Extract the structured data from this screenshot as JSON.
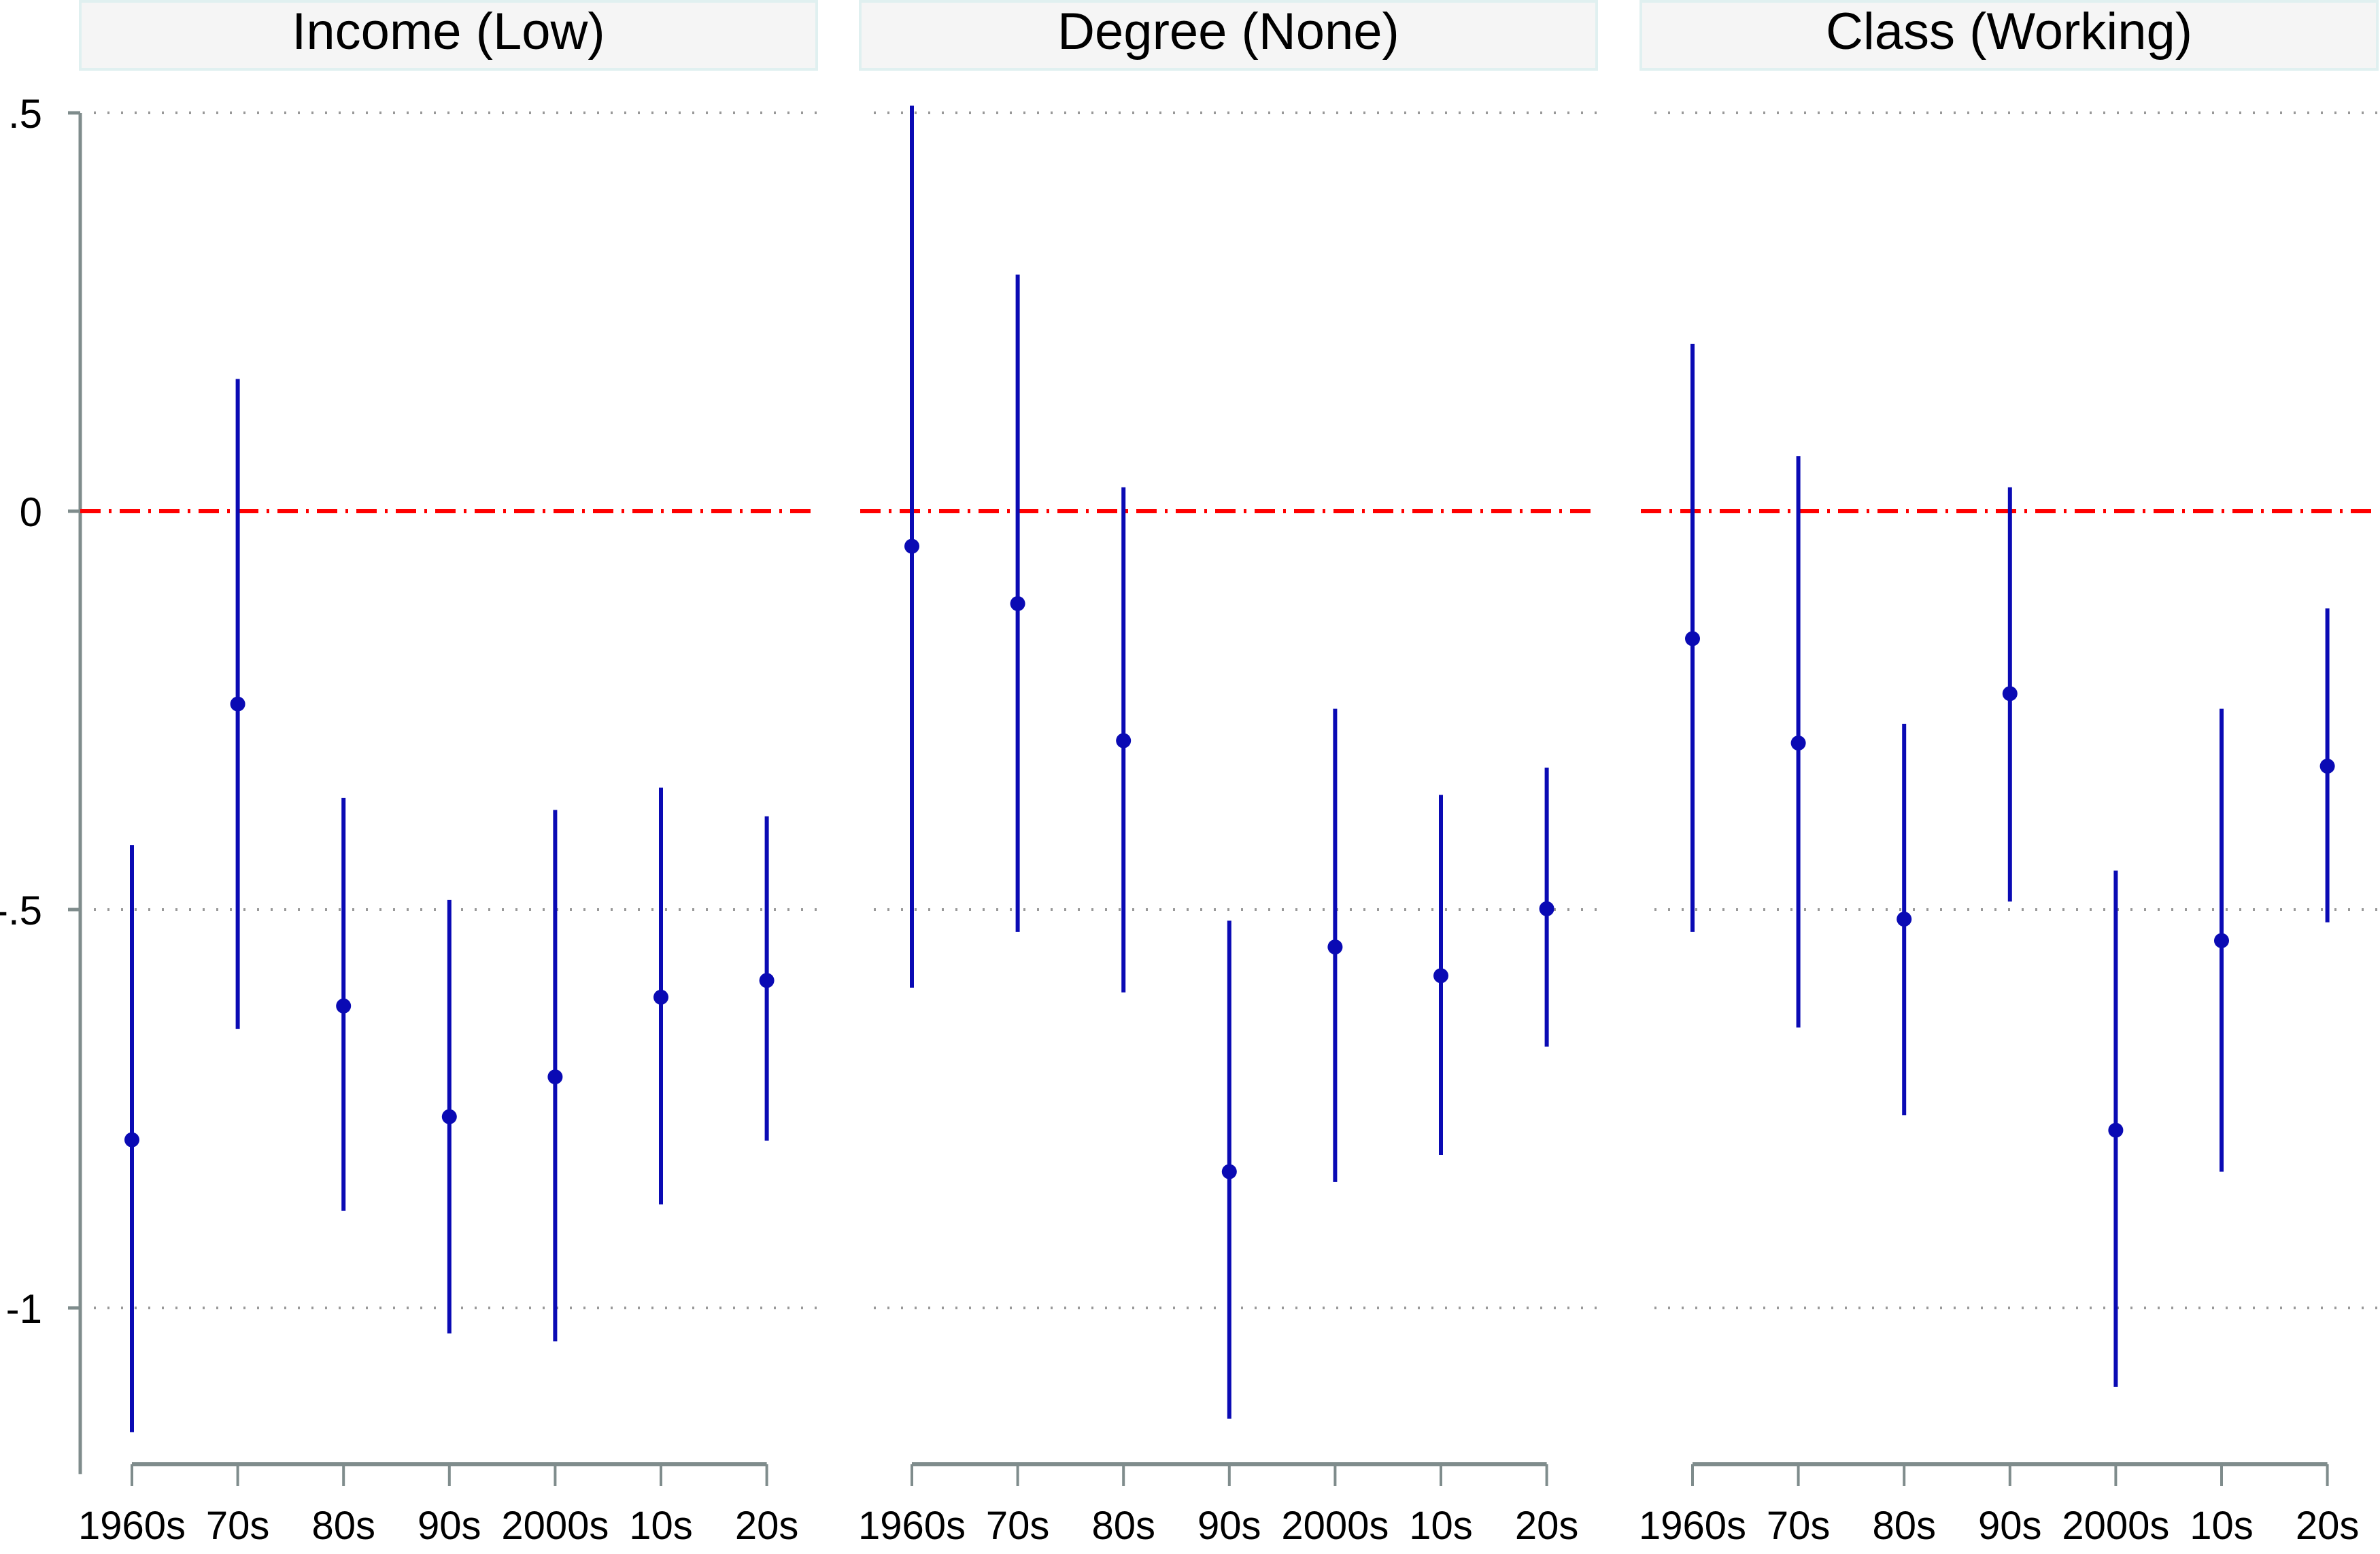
{
  "chart_data": {
    "type": "scatter",
    "subtype": "point-estimate-with-confidence-intervals",
    "categories": [
      "1960s",
      "70s",
      "80s",
      "90s",
      "2000s",
      "10s",
      "20s"
    ],
    "ylim": [
      -1.2,
      0.5
    ],
    "yticks": [
      0.5,
      0,
      -0.5,
      -1
    ],
    "ytick_labels": [
      ".5",
      "0",
      "-.5",
      "-1"
    ],
    "reference_line": {
      "y": 0,
      "color": "#ff0000",
      "style": "dash-dot"
    },
    "grid": "dotted horizontal",
    "colors": {
      "point": "#0a0ab4",
      "ci": "#0a0ab4",
      "axis": "#7f8c8c",
      "strip": "#f5f5f5",
      "strip_border": "#e0f0f0",
      "grid": "#999999"
    },
    "panels": [
      {
        "title": "Income (Low)",
        "estimates": [
          -0.789,
          -0.242,
          -0.621,
          -0.76,
          -0.71,
          -0.61,
          -0.589
        ],
        "ci_low": [
          -1.156,
          -0.65,
          -0.878,
          -1.032,
          -1.042,
          -0.87,
          -0.79
        ],
        "ci_high": [
          -0.419,
          0.166,
          -0.36,
          -0.488,
          -0.375,
          -0.347,
          -0.383
        ]
      },
      {
        "title": "Degree (None)",
        "estimates": [
          -0.044,
          -0.116,
          -0.288,
          -0.829,
          -0.547,
          -0.583,
          -0.499
        ],
        "ci_low": [
          -0.598,
          -0.528,
          -0.604,
          -1.139,
          -0.842,
          -0.808,
          -0.672
        ],
        "ci_high": [
          0.509,
          0.297,
          0.03,
          -0.514,
          -0.248,
          -0.356,
          -0.322
        ]
      },
      {
        "title": "Class (Working)",
        "estimates": [
          -0.16,
          -0.291,
          -0.512,
          -0.229,
          -0.777,
          -0.539,
          -0.32
        ],
        "ci_low": [
          -0.528,
          -0.648,
          -0.758,
          -0.49,
          -1.099,
          -0.829,
          -0.516
        ],
        "ci_high": [
          0.21,
          0.069,
          -0.267,
          0.03,
          -0.451,
          -0.248,
          -0.122
        ]
      }
    ]
  }
}
